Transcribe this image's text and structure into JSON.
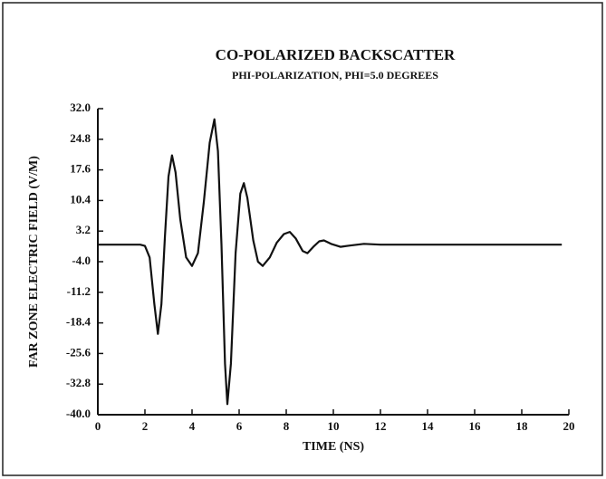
{
  "chart_data": {
    "type": "line",
    "title": "CO-POLARIZED BACKSCATTER",
    "subtitle": "PHI-POLARIZATION, PHI=5.0 DEGREES",
    "xlabel": "TIME (NS)",
    "ylabel": "FAR ZONE ELECTRIC FIELD (V/M)",
    "xlim": [
      0,
      20
    ],
    "xticks": [
      0,
      2,
      4,
      6,
      8,
      10,
      12,
      14,
      16,
      18,
      20
    ],
    "ylim": [
      -40,
      32
    ],
    "yticks": [
      {
        "value": 32,
        "label": "32.0"
      },
      24.8,
      17.6,
      10.4,
      3.2,
      {
        "value": -4,
        "label": "-4.0"
      },
      -11.2,
      -18.4,
      -25.6,
      -32.8,
      {
        "value": -40,
        "label": "-40.0"
      }
    ],
    "series": [
      {
        "color": "#111111",
        "x": [
          0,
          1.8,
          2.0,
          2.2,
          2.4,
          2.55,
          2.7,
          2.85,
          3.0,
          3.15,
          3.3,
          3.5,
          3.75,
          4.0,
          4.25,
          4.5,
          4.75,
          4.95,
          5.1,
          5.25,
          5.4,
          5.5,
          5.65,
          5.85,
          6.05,
          6.2,
          6.35,
          6.6,
          6.8,
          7.0,
          7.3,
          7.6,
          7.9,
          8.15,
          8.4,
          8.7,
          8.9,
          9.15,
          9.4,
          9.6,
          9.9,
          10.3,
          10.7,
          11.3,
          12,
          19.7
        ],
        "values": [
          0,
          0,
          -0.3,
          -3,
          -14,
          -21,
          -14,
          2,
          16,
          21,
          17,
          6,
          -3,
          -5,
          -2,
          10,
          24,
          29.5,
          22,
          0,
          -28,
          -37.5,
          -28,
          -2,
          12,
          14.5,
          11,
          1,
          -4,
          -5,
          -3,
          0.5,
          2.5,
          3,
          1.5,
          -1.5,
          -2,
          -0.5,
          0.8,
          1,
          0.2,
          -0.5,
          -0.2,
          0.2,
          0,
          0
        ]
      }
    ]
  }
}
